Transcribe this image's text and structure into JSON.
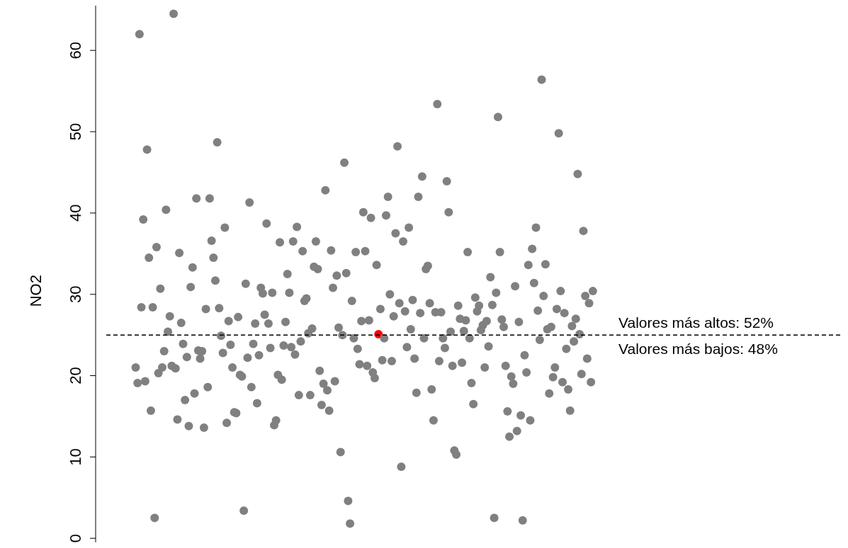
{
  "chart_data": {
    "type": "scatter",
    "ylabel": "NO2",
    "ylim": [
      -0.5,
      65.5
    ],
    "yticks": [
      0,
      10,
      20,
      30,
      40,
      50,
      60
    ],
    "tick_labels": "y",
    "marker": "circle",
    "ref_lines": [
      {
        "axis": "y",
        "value": 25,
        "line_style": "dashed",
        "color": "#000000"
      }
    ],
    "annotations": [
      "Valores más altos: 52%",
      "Valores más bajos: 48%"
    ],
    "categories": [
      null,
      null,
      null,
      null,
      null,
      null,
      null,
      null,
      null,
      null,
      null,
      null,
      null,
      null,
      null,
      null,
      null,
      null,
      null,
      null,
      null,
      null,
      null,
      null,
      null,
      null,
      null,
      null,
      null,
      null,
      null,
      null,
      null,
      null,
      null,
      null,
      null,
      null,
      null,
      null,
      null,
      null,
      null,
      null,
      null,
      null,
      null,
      null,
      null,
      null,
      null,
      null,
      null,
      null,
      null,
      null,
      null,
      null,
      null,
      null,
      null,
      null,
      null,
      null,
      null,
      null,
      null,
      null,
      null,
      null,
      null,
      null,
      null,
      null,
      null,
      null,
      null,
      null,
      null,
      null,
      null,
      null,
      null,
      null,
      null,
      null,
      null,
      null,
      null,
      null,
      null,
      null,
      null,
      null,
      null,
      null,
      null,
      null,
      null,
      null,
      null,
      null,
      null,
      null,
      null,
      null,
      null,
      null,
      null,
      null,
      null,
      null,
      null,
      null,
      null,
      null,
      null,
      null,
      null,
      null,
      null,
      null,
      null,
      null,
      null,
      null,
      null,
      null,
      null,
      null,
      null,
      null,
      null,
      null,
      null,
      null,
      null,
      null,
      null,
      null,
      null,
      null,
      null,
      null,
      null,
      null,
      null,
      null,
      null,
      null,
      null,
      null,
      null,
      null,
      null,
      null,
      null,
      null,
      null,
      null,
      null,
      null,
      null,
      null,
      null,
      null,
      null,
      null,
      null,
      null,
      null,
      null,
      null,
      null,
      null,
      null,
      null,
      null,
      null,
      null,
      null,
      null,
      null,
      null,
      null,
      null,
      null,
      null,
      null,
      null,
      null,
      null,
      null,
      null,
      null,
      null,
      null,
      null,
      null,
      null,
      null,
      null,
      null,
      null,
      null,
      null,
      null,
      null,
      null,
      null,
      null,
      null,
      null,
      null,
      null,
      null,
      null,
      null,
      null,
      null,
      null,
      null,
      null,
      null,
      null,
      null,
      null,
      null,
      null,
      null,
      null,
      null,
      null,
      null,
      null,
      null,
      null,
      null,
      null,
      null,
      null,
      null,
      null,
      null,
      null,
      null,
      null,
      null,
      null,
      null,
      null,
      null,
      null,
      null,
      null,
      null,
      null,
      null,
      null,
      null,
      null,
      null,
      null,
      null,
      null,
      null,
      null,
      null,
      null,
      null,
      null,
      null,
      null,
      null,
      null,
      null,
      null,
      null,
      null,
      null,
      null,
      null,
      null,
      null,
      null,
      null,
      null,
      null,
      null,
      null,
      null,
      null,
      null,
      null,
      null,
      null,
      null,
      null,
      null,
      null,
      null,
      null,
      null,
      null,
      null,
      null,
      null,
      null,
      null,
      null,
      null,
      null,
      null,
      null,
      null,
      null,
      null,
      null,
      null,
      null,
      null,
      null,
      null,
      null,
      null,
      null,
      null,
      null,
      null,
      null,
      null,
      null,
      null,
      null,
      null,
      null,
      null,
      null,
      null,
      null,
      null,
      null,
      null,
      null,
      null,
      null,
      null,
      null,
      null,
      null,
      null,
      null,
      null,
      null,
      null,
      null,
      null,
      null,
      null,
      null,
      null,
      null,
      null,
      null,
      null,
      null,
      null,
      null,
      null,
      null,
      null,
      null,
      null,
      null,
      null,
      null,
      null,
      null,
      null,
      null,
      null,
      null,
      null,
      null,
      null,
      null,
      null,
      null
    ],
    "series": [
      {
        "values": [
          null,
          null,
          null,
          null,
          null,
          null,
          null,
          null,
          null,
          null,
          null,
          null,
          null,
          null,
          null,
          21,
          19.1,
          62,
          28.4,
          39.2,
          19.3,
          47.8,
          34.5,
          15.7,
          28.4,
          2.5,
          35.8,
          20.3,
          30.7,
          21,
          23,
          40.4,
          25.4,
          27.3,
          21.2,
          64.5,
          20.9,
          14.6,
          35.1,
          26.5,
          23.9,
          17,
          22.3,
          13.8,
          30.9,
          33.3,
          17.8,
          41.8,
          23.1,
          22.1,
          23,
          13.6,
          28.2,
          18.6,
          41.8,
          36.6,
          34.5,
          31.7,
          48.7,
          28.3,
          24.9,
          22.8,
          38.2,
          14.2,
          26.7,
          23.8,
          21,
          15.5,
          15.4,
          27.2,
          20.1,
          19.9,
          3.4,
          31.3,
          22.2,
          41.3,
          18.6,
          23.9,
          26.4,
          16.6,
          22.5,
          30.8,
          30.1,
          27.5,
          38.7,
          26.4,
          23.4,
          30.2,
          13.9,
          14.5,
          20.1,
          36.4,
          19.5,
          23.7,
          26.6,
          32.5,
          30.2,
          23.5,
          36.5,
          22.6,
          38.3,
          17.6,
          24.2,
          35.3,
          29.2,
          29.5,
          25.2,
          17.6,
          25.8,
          33.4,
          36.5,
          33.1,
          20.6,
          16.4,
          19,
          42.8,
          18.2,
          15.7,
          35.4,
          30.8,
          19.3,
          32.3,
          25.9,
          10.6,
          25,
          46.2,
          32.6,
          4.6,
          1.8,
          29.2,
          24.6,
          35.2,
          23.3,
          21.4,
          26.7,
          40.1,
          35.3,
          21.2,
          26.8,
          39.4,
          20.4,
          19.7,
          33.6,
          25.1,
          28.2,
          21.9,
          24.6,
          39.7,
          42,
          30,
          21.8,
          27.3,
          37.5,
          48.2,
          28.9,
          8.8,
          36.5,
          27.9,
          23.5,
          38.2,
          25.7,
          29.3,
          22.1,
          17.9,
          42,
          27.7,
          44.5,
          24.6,
          33.1,
          33.5,
          28.9,
          18.3,
          14.5,
          27.8,
          53.4,
          21.8,
          27.8,
          24.6,
          23.4,
          43.9,
          40.1,
          25.4,
          21.2,
          10.8,
          10.3,
          28.6,
          27,
          21.6,
          25.5,
          26.8,
          35.2,
          24.6,
          19.1,
          16.5,
          29.6,
          27.9,
          28.6,
          25.6,
          26.2,
          21,
          26.7,
          23.6,
          32.1,
          28.7,
          2.5,
          30.2,
          51.8,
          35.2,
          26.9,
          26,
          21.2,
          15.6,
          12.5,
          19.9,
          19,
          31,
          13.2,
          26.6,
          15.1,
          2.2,
          22.5,
          20.4,
          33.6,
          14.5,
          35.6,
          31.4,
          38.2,
          28,
          24.4,
          56.4,
          29.8,
          33.7,
          25.7,
          17.8,
          26,
          19.8,
          21,
          28.2,
          49.8,
          30.4,
          19.2,
          27.7,
          23.3,
          18.3,
          15.7,
          26.1,
          24.2,
          27,
          44.8,
          25.1,
          20.2,
          37.8,
          29.8,
          22.1,
          28.9,
          19.2,
          30.4,
          null,
          null,
          null,
          null,
          null,
          null,
          null,
          null,
          null,
          null,
          null,
          null,
          null,
          null,
          null,
          null,
          null,
          null,
          null,
          null,
          null,
          null,
          null,
          null,
          null,
          null,
          null,
          null,
          null,
          null,
          null,
          null,
          null,
          null,
          null,
          null,
          null,
          null,
          null,
          null,
          null,
          null,
          null,
          null,
          null,
          null,
          null,
          null,
          null,
          null,
          null,
          null,
          null,
          null,
          null,
          null,
          null,
          null,
          null,
          null,
          null,
          null,
          null,
          null,
          null,
          null,
          null,
          null,
          null,
          null,
          null,
          null,
          null,
          null,
          null,
          null,
          null,
          null,
          null,
          null,
          null,
          null,
          null,
          null,
          null,
          null,
          null,
          null,
          null,
          null,
          null,
          null,
          null,
          null,
          null,
          null,
          null,
          null,
          null,
          null,
          null,
          null,
          null,
          null,
          null,
          null,
          null,
          null,
          null,
          null,
          null,
          null,
          null,
          null,
          null,
          null,
          null,
          null,
          null,
          null,
          null,
          null,
          null,
          null,
          null,
          null,
          null,
          null,
          null,
          null,
          null
        ],
        "colors": [
          null,
          null,
          null,
          null,
          null,
          null,
          null,
          null,
          null,
          null,
          null,
          null,
          null,
          null,
          null,
          "#808080",
          "#808080",
          "#808080",
          "#808080",
          "#808080",
          "#808080",
          "#808080",
          "#808080",
          "#808080",
          "#808080",
          "#808080",
          "#808080",
          "#808080",
          "#808080",
          "#808080",
          "#808080",
          "#808080",
          "#808080",
          "#808080",
          "#808080",
          "#808080",
          "#808080",
          "#808080",
          "#808080",
          "#808080",
          "#808080",
          "#808080",
          "#808080",
          "#808080",
          "#808080",
          "#808080",
          "#808080",
          "#808080",
          "#808080",
          "#808080",
          "#808080",
          "#808080",
          "#808080",
          "#808080",
          "#808080",
          "#808080",
          "#808080",
          "#808080",
          "#808080",
          "#808080",
          "#808080",
          "#808080",
          "#808080",
          "#808080",
          "#808080",
          "#808080",
          "#808080",
          "#808080",
          "#808080",
          "#808080",
          "#808080",
          "#808080",
          "#808080",
          "#808080",
          "#808080",
          "#808080",
          "#808080",
          "#808080",
          "#808080",
          "#808080",
          "#808080",
          "#808080",
          "#808080",
          "#808080",
          "#808080",
          "#808080",
          "#808080",
          "#808080",
          "#808080",
          "#808080",
          "#808080",
          "#808080",
          "#808080",
          "#808080",
          "#808080",
          "#808080",
          "#808080",
          "#808080",
          "#808080",
          "#808080",
          "#808080",
          "#808080",
          "#808080",
          "#808080",
          "#808080",
          "#808080",
          "#808080",
          "#808080",
          "#808080",
          "#808080",
          "#808080",
          "#808080",
          "#808080",
          "#808080",
          "#808080",
          "#808080",
          "#808080",
          "#808080",
          "#808080",
          "#808080",
          "#808080",
          "#808080",
          "#808080",
          "#808080",
          "#808080",
          "#808080",
          "#808080",
          "#808080",
          "#808080",
          "#808080",
          "#808080",
          "#808080",
          "#808080",
          "#808080",
          "#808080",
          "#808080",
          "#808080",
          "#808080",
          "#808080",
          "#808080",
          "#808080",
          "#808080",
          "#808080",
          "#ff0000",
          "#808080",
          "#808080",
          "#808080",
          "#808080",
          "#808080",
          "#808080",
          "#808080",
          "#808080",
          "#808080",
          "#808080",
          "#808080",
          "#808080",
          "#808080",
          "#808080",
          "#808080",
          "#808080",
          "#808080",
          "#808080",
          "#808080",
          "#808080",
          "#808080",
          "#808080",
          "#808080",
          "#808080",
          "#808080",
          "#808080",
          "#808080",
          "#808080",
          "#808080",
          "#808080",
          "#808080",
          "#808080",
          "#808080",
          "#808080",
          "#808080",
          "#808080",
          "#808080",
          "#808080",
          "#808080",
          "#808080",
          "#808080",
          "#808080",
          "#808080",
          "#808080",
          "#808080",
          "#808080",
          "#808080",
          "#808080",
          "#808080",
          "#808080",
          "#808080",
          "#808080",
          "#808080",
          "#808080",
          "#808080",
          "#808080",
          "#808080",
          "#808080",
          "#808080",
          "#808080",
          "#808080",
          "#808080",
          "#808080",
          "#808080",
          "#808080",
          "#808080",
          "#808080",
          "#808080",
          "#808080",
          "#808080",
          "#808080",
          "#808080",
          "#808080",
          "#808080",
          "#808080",
          "#808080",
          "#808080",
          "#808080",
          "#808080",
          "#808080",
          "#808080",
          "#808080",
          "#808080",
          "#808080",
          "#808080",
          "#808080",
          "#808080",
          "#808080",
          "#808080",
          "#808080",
          "#808080",
          "#808080",
          "#808080",
          "#808080",
          "#808080",
          "#808080",
          "#808080",
          "#808080",
          "#808080",
          "#808080",
          "#808080",
          "#808080",
          "#808080",
          "#808080",
          "#808080",
          "#808080",
          "#808080",
          "#808080",
          "#808080",
          "#808080",
          "#808080",
          "#808080",
          "#808080",
          null,
          null,
          null,
          null,
          null,
          null,
          null,
          null,
          null,
          null,
          null,
          null,
          null,
          null,
          null,
          null,
          null,
          null,
          null,
          null,
          null,
          null,
          null,
          null,
          null,
          null,
          null,
          null,
          null,
          null,
          null,
          null,
          null,
          null,
          null,
          null,
          null,
          null,
          null,
          null,
          null,
          null,
          null,
          null,
          null,
          null,
          null,
          null,
          null,
          null,
          null,
          null,
          null,
          null,
          null,
          null,
          null,
          null,
          null,
          null,
          null,
          null,
          null,
          null,
          null,
          null,
          null,
          null,
          null,
          null,
          null,
          null,
          null,
          null,
          null,
          null,
          null,
          null,
          null,
          null,
          null,
          null,
          null,
          null,
          null,
          null,
          null,
          null,
          null,
          null,
          null,
          null,
          null,
          null,
          null,
          null,
          null,
          null,
          null,
          null,
          null,
          null,
          null,
          null,
          null,
          null,
          null,
          null,
          null,
          null,
          null,
          null,
          null,
          null,
          null,
          null,
          null,
          null,
          null,
          null,
          null,
          null,
          null,
          null,
          null,
          null,
          null,
          null,
          null,
          null,
          null
        ]
      }
    ]
  }
}
